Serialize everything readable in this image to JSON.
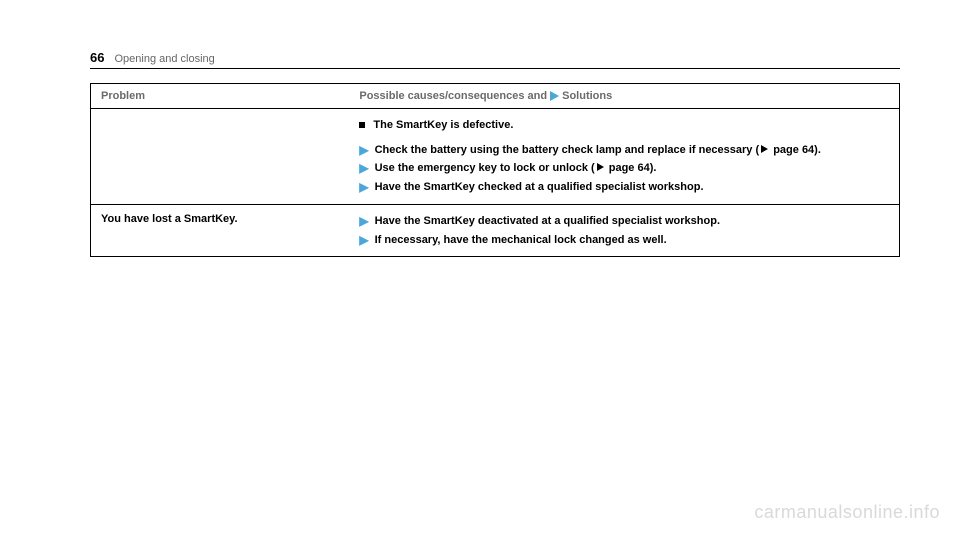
{
  "header": {
    "page_number": "66",
    "section": "Opening and closing"
  },
  "table": {
    "columns": {
      "problem": "Problem",
      "solutions_prefix": "Possible causes/consequences and ",
      "solutions_suffix": "Solutions"
    },
    "rows": [
      {
        "problem": "",
        "causes": [
          "The SmartKey is defective."
        ],
        "solutions": [
          {
            "text_a": "Check the battery using the battery check lamp and replace if necessary (",
            "text_b": " page 64)."
          },
          {
            "text_a": "Use the emergency key to lock or unlock (",
            "text_b": " page 64)."
          },
          {
            "text_a": "Have the SmartKey checked at a qualified specialist workshop.",
            "text_b": ""
          }
        ]
      },
      {
        "problem": "You have lost a SmartKey.",
        "causes": [],
        "solutions": [
          {
            "text_a": "Have the SmartKey deactivated at a qualified specialist workshop.",
            "text_b": ""
          },
          {
            "text_a": "If necessary, have the mechanical lock changed as well.",
            "text_b": ""
          }
        ]
      }
    ]
  },
  "watermark": "carmanualsonline.info",
  "colors": {
    "accent": "#49a7d9",
    "text": "#000000",
    "header_text": "#6a6a6a",
    "watermark": "#d9d9d9",
    "background": "#ffffff"
  },
  "typography": {
    "body_fontsize": 11,
    "pagenum_fontsize": 13,
    "watermark_fontsize": 18,
    "font_family": "Arial"
  }
}
